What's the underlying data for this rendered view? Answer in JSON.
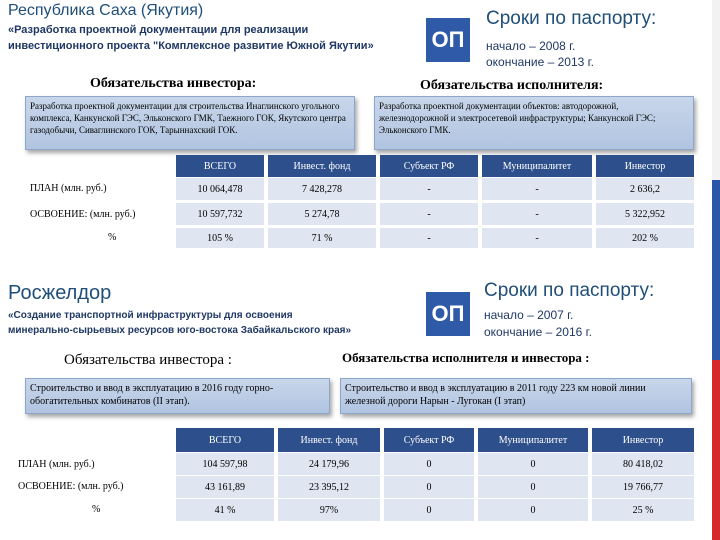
{
  "section1": {
    "title": "Республика Саха (Якутия)",
    "subtitle_line1": "«Разработка проектной документации для реализации",
    "subtitle_line2": "инвестиционного проекта \"Комплексное развитие Южной Якутии»",
    "op_label": "ОП",
    "sroki_title": "Сроки по паспорту:",
    "start": "начало – 2008 г.",
    "end": "окончание – 2013 г.",
    "investor_heading": "Обязательства инвестора:",
    "executor_heading": "Обязательства исполнителя:",
    "investor_text": "Разработка проектной документации для строительства Инаглинского угольного комплекса, Канкунской ГЭС, Эльконского ГМК, Таежного ГОК, Якутского центра газодобычи, Сиваглинского ГОК, Тарыннахский ГОК.",
    "executor_text": "Разработка проектной документации объектов: автодорожной, железнодорожной и электросетевой инфраструктуры; Канкунской ГЭС; Эльконского ГМК.",
    "table": {
      "headers": [
        "ВСЕГО",
        "Инвест. фонд",
        "Субъект РФ",
        "Муниципалитет",
        "Инвестор"
      ],
      "rows": [
        {
          "label": "ПЛАН (млн. руб.)",
          "values": [
            "10 064,478",
            "7 428,278",
            "-",
            "-",
            "2 636,2"
          ]
        },
        {
          "label": "ОСВОЕНИЕ:  (млн. руб.)",
          "values": [
            "10 597,732",
            "5 274,78",
            "-",
            "-",
            "5 322,952"
          ]
        },
        {
          "label": "%",
          "values": [
            "105 %",
            "71 %",
            "-",
            "-",
            "202 %"
          ]
        }
      ]
    }
  },
  "section2": {
    "title": "Росжелдор",
    "subtitle_line1": "«Создание транспортной инфраструктуры для освоения",
    "subtitle_line2": "минерально-сырьевых ресурсов юго-востока Забайкальского края»",
    "op_label": "ОП",
    "sroki_title": "Сроки по паспорту:",
    "start": "начало – 2007 г.",
    "end": "окончание – 2016 г.",
    "investor_heading": "Обязательства инвестора :",
    "executor_heading": "Обязательства исполнителя и инвестора :",
    "investor_text": "Строительство и ввод в эксплуатацию в 2016 году горно-обогатительных комбинатов (II этап).",
    "executor_text": "Строительство и ввод в эксплуатацию в 2011 году 223 км новой линии железной дороги Нарын - Лугокан (I этап)",
    "table": {
      "headers": [
        "ВСЕГО",
        "Инвест. фонд",
        "Субъект РФ",
        "Муниципалитет",
        "Инвестор"
      ],
      "rows": [
        {
          "label": "ПЛАН (млн. руб.)",
          "values": [
            "104 597,98",
            "24 179,96",
            "0",
            "0",
            "80 418,02"
          ]
        },
        {
          "label": "ОСВОЕНИЕ:   (млн. руб.)",
          "values": [
            "43 161,89",
            "23 395,12",
            "0",
            "0",
            "19 766,77"
          ]
        },
        {
          "label": "%",
          "values": [
            "41 %",
            "97%",
            "0",
            "0",
            "25 %"
          ]
        }
      ]
    }
  }
}
